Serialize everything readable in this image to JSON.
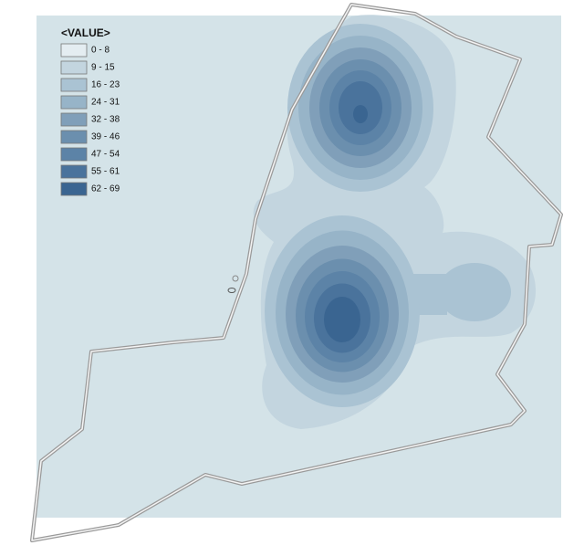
{
  "legend": {
    "title": "<VALUE>",
    "items": [
      {
        "label": "0 - 8",
        "color": "#e4edf1"
      },
      {
        "label": "9 - 15",
        "color": "#c3d5df"
      },
      {
        "label": "16 - 23",
        "color": "#aac3d3"
      },
      {
        "label": "24 - 31",
        "color": "#97b4c8"
      },
      {
        "label": "32 - 38",
        "color": "#809fb9"
      },
      {
        "label": "39 - 46",
        "color": "#6b8fae"
      },
      {
        "label": "47 - 54",
        "color": "#5c83a7"
      },
      {
        "label": "55 - 61",
        "color": "#4a739c"
      },
      {
        "label": "62 - 69",
        "color": "#3a6591"
      }
    ]
  }
}
